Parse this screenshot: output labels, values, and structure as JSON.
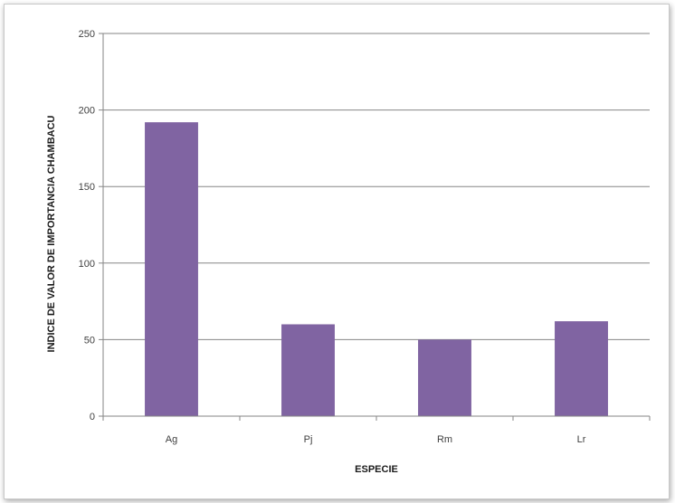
{
  "chart_data": {
    "type": "bar",
    "title": "",
    "xlabel": "ESPECIE",
    "ylabel": "INDICE DE VALOR DE IMPORTANCIA CHAMBACU",
    "categories": [
      "Ag",
      "Pj",
      "Rm",
      "Lr"
    ],
    "values": [
      192,
      60,
      50,
      62
    ],
    "ylim": [
      0,
      250
    ],
    "yticks": [
      0,
      50,
      100,
      150,
      200,
      250
    ],
    "grid": true,
    "legend": "none",
    "colors": {
      "bar": "#8064A2",
      "grid": "#868686",
      "axis": "#868686"
    }
  }
}
